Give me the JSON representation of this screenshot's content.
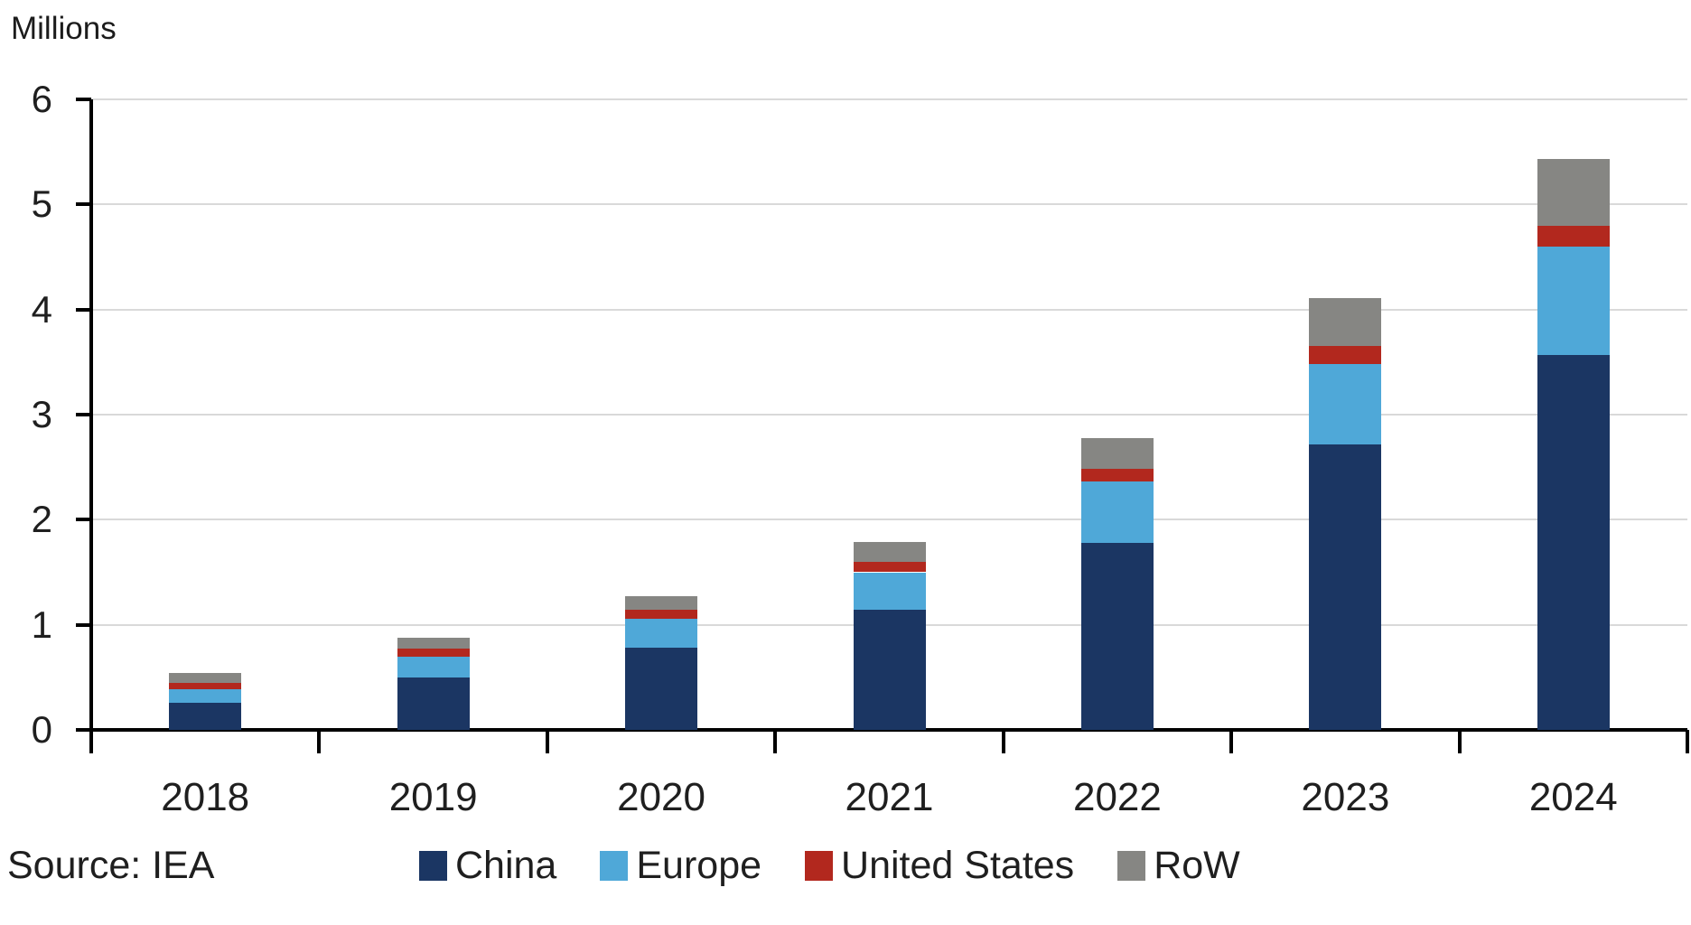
{
  "source": "Source: IEA",
  "colors": {
    "gridline": "#d9d9d9",
    "axis": "#000000",
    "text": "#1f1f1f",
    "china": "#1b3663",
    "europe": "#4fa8d8",
    "united_states": "#b2281e",
    "row": "#868683"
  },
  "chart_data": {
    "type": "bar",
    "stacked": true,
    "title": "",
    "ylabel": "Millions",
    "xlabel": "",
    "categories": [
      "2018",
      "2019",
      "2020",
      "2021",
      "2022",
      "2023",
      "2024"
    ],
    "series": [
      {
        "name": "China",
        "color": "#1b3663",
        "values": [
          0.26,
          0.5,
          0.78,
          1.14,
          1.78,
          2.72,
          3.57
        ]
      },
      {
        "name": "Europe",
        "color": "#4fa8d8",
        "values": [
          0.13,
          0.2,
          0.28,
          0.36,
          0.58,
          0.76,
          1.03
        ]
      },
      {
        "name": "United States",
        "color": "#b2281e",
        "values": [
          0.06,
          0.07,
          0.08,
          0.1,
          0.12,
          0.17,
          0.2
        ]
      },
      {
        "name": "RoW",
        "color": "#868683",
        "values": [
          0.09,
          0.11,
          0.13,
          0.19,
          0.3,
          0.46,
          0.63
        ]
      }
    ],
    "totals": [
      0.54,
      0.88,
      1.27,
      1.79,
      2.78,
      4.11,
      5.43
    ],
    "ylim": [
      0,
      6
    ],
    "yticks": [
      0,
      1,
      2,
      3,
      4,
      5,
      6
    ],
    "grid": true,
    "legend_position": "bottom"
  }
}
